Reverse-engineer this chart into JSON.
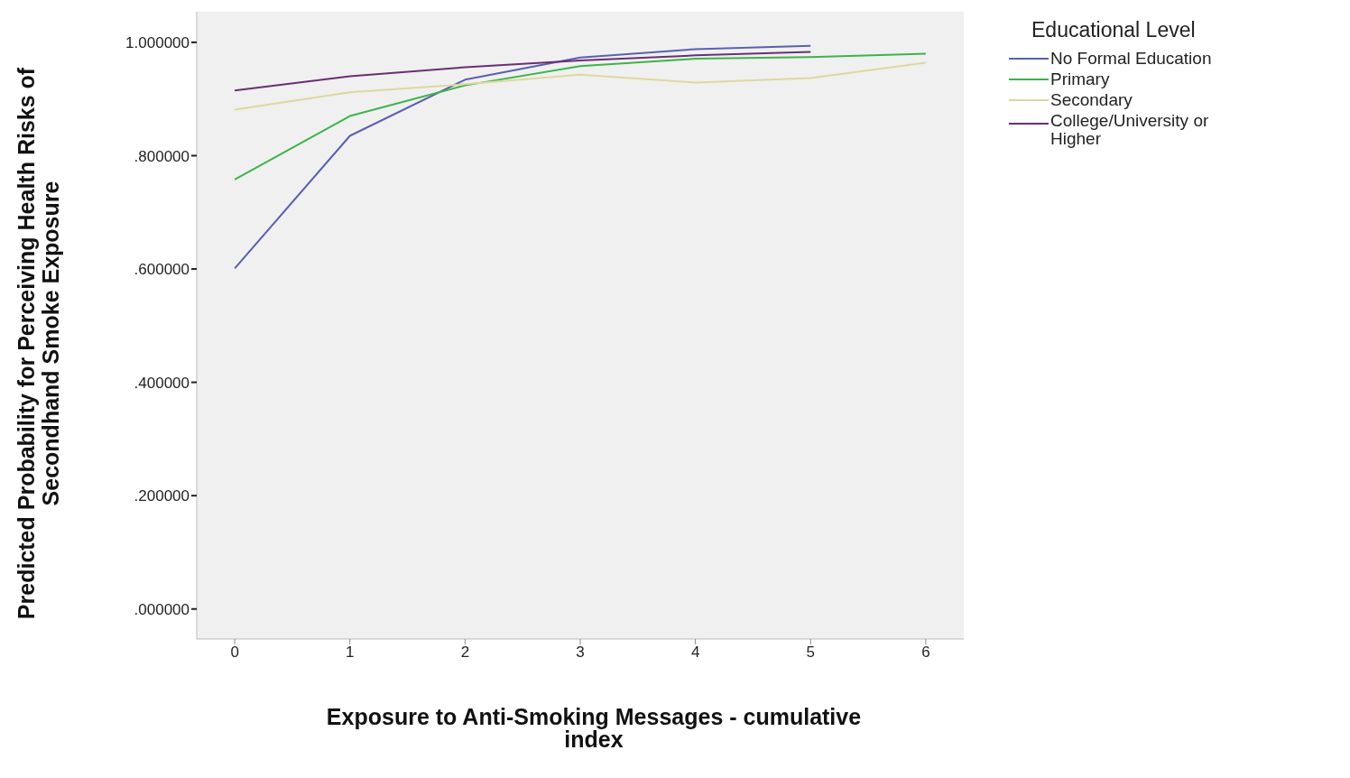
{
  "chart_data": {
    "type": "line",
    "xlabel": "Exposure to Anti-Smoking Messages - cumulative index",
    "ylabel": "Predicted Probability for Perceiving Health Risks of Secondhand Smoke Exposure",
    "legend_title": "Educational Level",
    "x": [
      0,
      1,
      2,
      3,
      4,
      5,
      6
    ],
    "series": [
      {
        "name": "No Formal Education",
        "color": "#5a5fb0",
        "values": [
          0.601,
          0.835,
          0.934,
          0.973,
          0.988,
          0.994,
          null
        ]
      },
      {
        "name": "Primary",
        "color": "#3cb44b",
        "values": [
          0.758,
          0.87,
          0.924,
          0.958,
          0.971,
          0.974,
          0.98
        ]
      },
      {
        "name": "Secondary",
        "color": "#ddd8a0",
        "values": [
          0.881,
          0.912,
          0.926,
          0.943,
          0.929,
          0.937,
          0.964
        ]
      },
      {
        "name": "College/University or Higher",
        "color": "#6b2f73",
        "values": [
          0.915,
          0.94,
          0.956,
          0.968,
          0.977,
          0.983,
          null
        ]
      }
    ],
    "xlim": [
      -0.33,
      6.33
    ],
    "xticks": [
      0,
      1,
      2,
      3,
      4,
      5,
      6
    ],
    "ylim": [
      -0.053,
      1.054
    ],
    "yticks": [
      {
        "value": 0,
        "label": ".000000"
      },
      {
        "value": 0.2,
        "label": ".200000"
      },
      {
        "value": 0.4,
        "label": ".400000"
      },
      {
        "value": 0.6,
        "label": ".600000"
      },
      {
        "value": 0.8,
        "label": ".800000"
      },
      {
        "value": 1,
        "label": "1.000000"
      }
    ],
    "grid": false,
    "legend": "right",
    "marker": "none",
    "line_style": "solid"
  }
}
